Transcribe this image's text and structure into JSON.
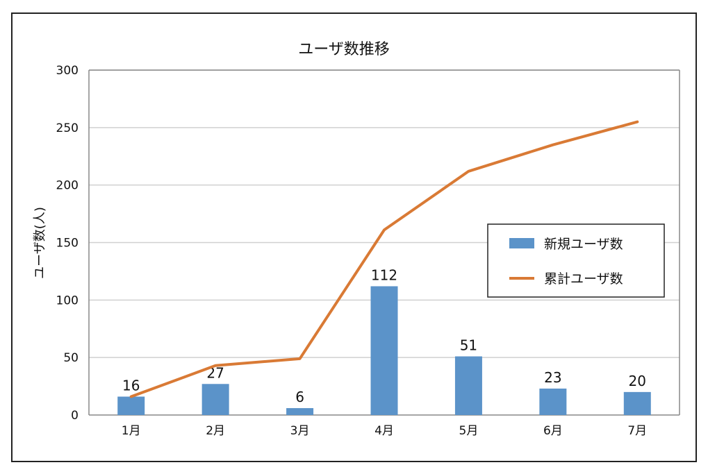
{
  "chart_data": {
    "type": "bar",
    "title": "ユーザ数推移",
    "ylabel": "ユーザ数(人)",
    "xlabel": "",
    "categories": [
      "1月",
      "2月",
      "3月",
      "4月",
      "5月",
      "6月",
      "7月"
    ],
    "ylim": [
      0,
      300
    ],
    "yticks": [
      0,
      50,
      100,
      150,
      200,
      250,
      300
    ],
    "grid": true,
    "legend_position": "right",
    "series": [
      {
        "name": "新規ユーザ数",
        "type": "bar",
        "color": "#5b93c9",
        "values": [
          16,
          27,
          6,
          112,
          51,
          23,
          20
        ],
        "data_labels": true
      },
      {
        "name": "累計ユーザ数",
        "type": "line",
        "color": "#d97a35",
        "values": [
          16,
          43,
          49,
          161,
          212,
          235,
          255
        ],
        "data_labels": false
      }
    ]
  }
}
